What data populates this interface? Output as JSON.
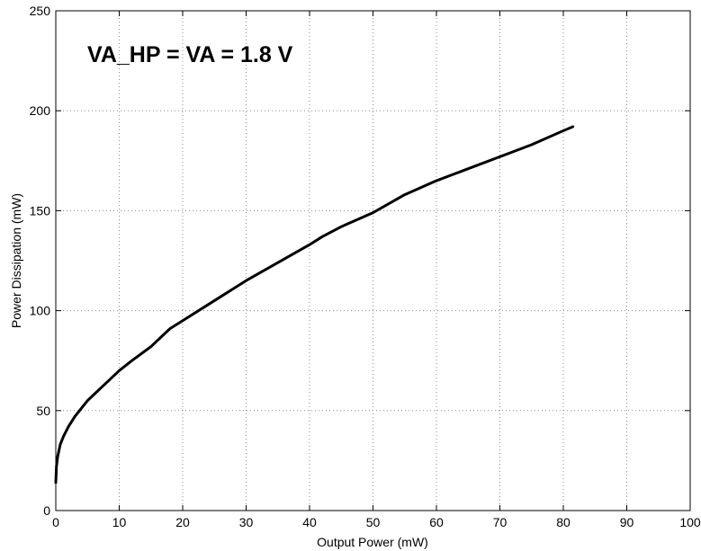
{
  "chart_data": {
    "type": "line",
    "title": "",
    "xlabel": "Output Power (mW)",
    "ylabel": "Power Dissipation (mW)",
    "xlim": [
      0,
      100
    ],
    "ylim": [
      0,
      250
    ],
    "xticks": [
      0,
      10,
      20,
      30,
      40,
      50,
      60,
      70,
      80,
      90,
      100
    ],
    "yticks": [
      0,
      50,
      100,
      150,
      200,
      250
    ],
    "grid": true,
    "annotation": "VA_HP = VA = 1.8 V",
    "series": [
      {
        "color": "#000000",
        "x": [
          0,
          0.1,
          0.3,
          0.7,
          1.2,
          2,
          3,
          4,
          5,
          6,
          7,
          8,
          10,
          12,
          15,
          18,
          20,
          24,
          28,
          30,
          35,
          40,
          42,
          45,
          50,
          55,
          60,
          65,
          70,
          75,
          80,
          81.5
        ],
        "y": [
          14,
          22,
          27,
          33,
          37,
          42,
          47,
          51,
          55,
          58,
          61,
          64,
          70,
          75,
          82,
          91,
          95,
          103,
          111,
          115,
          124,
          133,
          137,
          142,
          149,
          158,
          165,
          171,
          177,
          183,
          190,
          192
        ]
      }
    ]
  }
}
